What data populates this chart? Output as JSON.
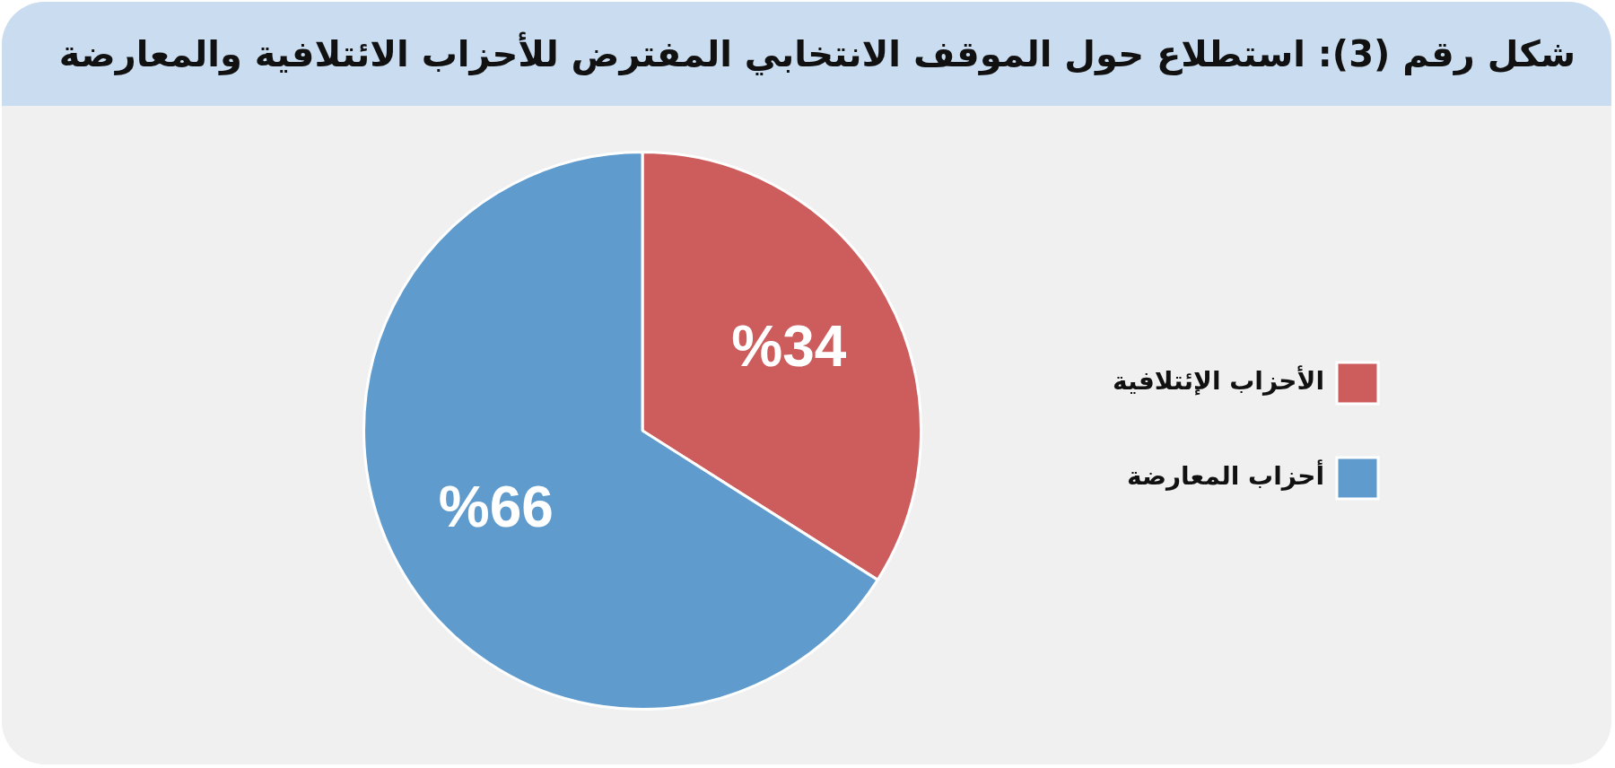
{
  "chart_data": {
    "type": "pie",
    "title": "شكل رقم (3): استطلاع حول الموقف الانتخابي المفترض للأحزاب الائتلافية والمعارضة",
    "categories": [
      "الأحزاب الإئتلافية",
      "أحزاب المعارضة"
    ],
    "values": [
      34,
      66
    ],
    "colors": [
      "#cd5c5c",
      "#5f9bcc"
    ],
    "value_labels": [
      "%34",
      "%66"
    ],
    "legend": "right"
  }
}
